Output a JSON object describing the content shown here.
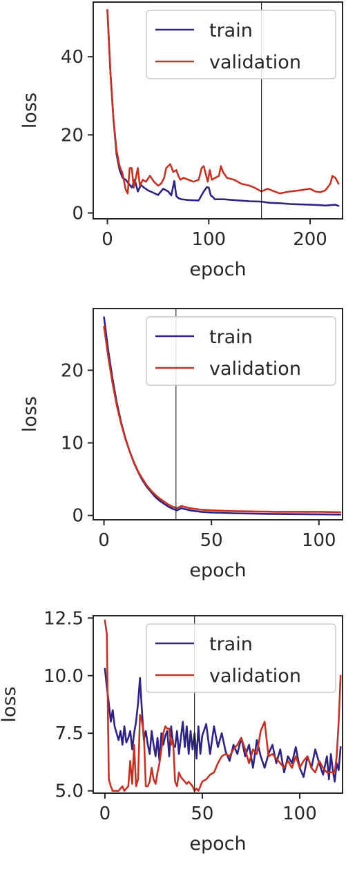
{
  "colors": {
    "train": "#2e2382",
    "validation": "#c53224",
    "axis": "#262626",
    "vline": "#1a1a1a"
  },
  "chart_data": [
    {
      "type": "line",
      "xlabel": "epoch",
      "ylabel": "loss",
      "xlim": [
        -14,
        232
      ],
      "ylim": [
        -1.5,
        54
      ],
      "xticks": [
        0,
        100,
        200
      ],
      "yticks": [
        0,
        20,
        40
      ],
      "vline": 152,
      "legend_position": "upper-right",
      "series": [
        {
          "name": "train",
          "x": [
            0,
            3,
            6,
            9,
            12,
            15,
            18,
            21,
            24,
            27,
            30,
            33,
            36,
            40,
            45,
            50,
            55,
            60,
            63,
            66,
            68,
            70,
            73,
            80,
            90,
            95,
            98,
            100,
            102,
            104,
            106,
            110,
            115,
            120,
            130,
            140,
            152,
            160,
            170,
            180,
            190,
            200,
            210,
            215,
            220,
            225,
            228
          ],
          "y": [
            52,
            36,
            24,
            15,
            11,
            9,
            8.5,
            7.5,
            6.5,
            8.5,
            5.5,
            7.2,
            6.5,
            5.8,
            5.2,
            4.6,
            6.2,
            5.5,
            4.5,
            8.2,
            4.3,
            3.8,
            3.5,
            3.3,
            3.2,
            5.5,
            6.6,
            6.5,
            4.5,
            4.1,
            3.5,
            3.5,
            3.5,
            3.4,
            3.2,
            3.0,
            2.9,
            2.6,
            2.5,
            2.3,
            2.2,
            2.1,
            2.0,
            1.9,
            2.0,
            2.1,
            1.8
          ]
        },
        {
          "name": "validation",
          "x": [
            0,
            3,
            6,
            9,
            12,
            15,
            18,
            20,
            22,
            24,
            26,
            30,
            32,
            35,
            38,
            42,
            46,
            50,
            53,
            56,
            58,
            62,
            65,
            68,
            70,
            72,
            75,
            80,
            85,
            90,
            93,
            95,
            97,
            99,
            101,
            103,
            105,
            110,
            112,
            114,
            118,
            125,
            132,
            140,
            145,
            152,
            158,
            165,
            170,
            180,
            190,
            200,
            205,
            210,
            215,
            220,
            222,
            225,
            228
          ],
          "y": [
            52,
            36,
            24,
            16,
            12,
            10,
            6,
            5,
            11.5,
            11.5,
            6.5,
            11.5,
            7,
            8.5,
            8,
            9.5,
            8,
            7,
            7.5,
            9,
            11.5,
            12.5,
            10.5,
            11,
            9.5,
            8.5,
            9,
            8.5,
            8,
            8.5,
            11.5,
            12,
            10,
            8,
            11,
            8.5,
            8.8,
            9.5,
            12,
            10.5,
            9,
            8.5,
            7.5,
            7,
            6.5,
            5.5,
            6.2,
            5.5,
            5.0,
            5.5,
            5.8,
            6.2,
            5.5,
            5.3,
            5.8,
            7.5,
            9.5,
            9,
            7.5
          ]
        }
      ]
    },
    {
      "type": "line",
      "xlabel": "epoch",
      "ylabel": "loss",
      "xlim": [
        -5,
        111
      ],
      "ylim": [
        -0.6,
        28.5
      ],
      "xticks": [
        0,
        50,
        100
      ],
      "yticks": [
        0,
        10,
        20
      ],
      "vline": 33.5,
      "legend_position": "upper-right",
      "series": [
        {
          "name": "train",
          "x": [
            0,
            2,
            4,
            6,
            8,
            10,
            12,
            14,
            16,
            18,
            20,
            22,
            24,
            26,
            28,
            30,
            32,
            34,
            36,
            40,
            45,
            50,
            55,
            60,
            70,
            80,
            90,
            100,
            110
          ],
          "y": [
            27.3,
            22.7,
            18.8,
            15.5,
            12.8,
            10.6,
            8.8,
            7.2,
            5.9,
            4.8,
            3.9,
            3.2,
            2.5,
            2.0,
            1.6,
            1.2,
            0.9,
            0.7,
            1.0,
            0.7,
            0.5,
            0.4,
            0.35,
            0.3,
            0.25,
            0.2,
            0.18,
            0.15,
            0.12
          ]
        },
        {
          "name": "validation",
          "x": [
            0,
            2,
            4,
            6,
            8,
            10,
            12,
            14,
            16,
            18,
            20,
            22,
            24,
            26,
            28,
            30,
            32,
            34,
            36,
            40,
            45,
            50,
            55,
            60,
            70,
            80,
            90,
            100,
            110
          ],
          "y": [
            26,
            21.8,
            18.2,
            15.1,
            12.6,
            10.5,
            8.8,
            7.3,
            6.0,
            5.0,
            4.1,
            3.4,
            2.8,
            2.3,
            1.9,
            1.5,
            1.2,
            1.0,
            1.3,
            1.0,
            0.8,
            0.7,
            0.65,
            0.6,
            0.55,
            0.5,
            0.5,
            0.5,
            0.45
          ]
        }
      ]
    },
    {
      "type": "line",
      "xlabel": "epoch",
      "ylabel": "loss",
      "xlim": [
        -6,
        122
      ],
      "ylim": [
        4.9,
        12.6
      ],
      "xticks": [
        0,
        50,
        100
      ],
      "yticks": [
        5.0,
        7.5,
        10.0,
        12.5
      ],
      "vline": 46,
      "legend_position": "upper-right",
      "series": [
        {
          "name": "train",
          "x": [
            0,
            1,
            2,
            3,
            4,
            5,
            6,
            7,
            8,
            9,
            10,
            11,
            12,
            13,
            14,
            15,
            16,
            17,
            18,
            19,
            20,
            21,
            22,
            23,
            24,
            25,
            26,
            27,
            28,
            29,
            30,
            31,
            32,
            33,
            34,
            35,
            36,
            37,
            38,
            39,
            40,
            41,
            42,
            43,
            44,
            45,
            46,
            47,
            48,
            49,
            50,
            52,
            54,
            56,
            58,
            60,
            62,
            64,
            66,
            68,
            70,
            72,
            74,
            76,
            78,
            80,
            82,
            84,
            86,
            88,
            90,
            92,
            94,
            96,
            98,
            100,
            102,
            104,
            106,
            108,
            110,
            112,
            114,
            115,
            116,
            117,
            118,
            119,
            120,
            121
          ],
          "y": [
            10.3,
            9.5,
            8.8,
            8.0,
            8.5,
            7.8,
            7.5,
            7.2,
            7.6,
            7.0,
            7.8,
            7.1,
            7.3,
            7.6,
            6.8,
            7.5,
            8.0,
            8.8,
            9.9,
            8.5,
            7.2,
            7.6,
            7.0,
            6.6,
            7.6,
            7.0,
            6.5,
            7.3,
            6.3,
            7.5,
            7.0,
            7.4,
            7.6,
            6.5,
            7.8,
            7.0,
            6.9,
            7.6,
            6.6,
            7.3,
            8.0,
            6.9,
            7.8,
            6.6,
            7.6,
            6.8,
            7.5,
            6.4,
            7.8,
            6.6,
            7.4,
            7.9,
            6.6,
            7.8,
            6.9,
            7.5,
            6.7,
            6.3,
            7.0,
            6.6,
            7.3,
            6.5,
            7.0,
            6.0,
            7.2,
            6.5,
            6.0,
            6.6,
            7.0,
            6.2,
            6.8,
            5.8,
            6.5,
            6.2,
            6.9,
            6.0,
            5.6,
            6.5,
            6.0,
            6.8,
            6.2,
            5.7,
            6.5,
            5.5,
            6.6,
            5.9,
            5.4,
            6.2,
            5.9,
            6.9
          ]
        },
        {
          "name": "validation",
          "x": [
            0,
            1,
            2,
            3,
            4,
            5,
            6,
            7,
            8,
            9,
            10,
            11,
            12,
            13,
            14,
            15,
            16,
            17,
            18,
            19,
            20,
            21,
            22,
            23,
            24,
            25,
            26,
            27,
            28,
            29,
            30,
            31,
            32,
            33,
            34,
            35,
            36,
            37,
            38,
            39,
            40,
            41,
            42,
            43,
            44,
            45,
            46,
            47,
            48,
            49,
            50,
            52,
            54,
            56,
            58,
            60,
            62,
            64,
            66,
            68,
            70,
            72,
            74,
            76,
            78,
            80,
            82,
            84,
            86,
            88,
            90,
            92,
            94,
            96,
            98,
            100,
            102,
            104,
            106,
            108,
            110,
            112,
            114,
            116,
            118,
            119,
            120,
            121
          ],
          "y": [
            12.4,
            11.8,
            5.5,
            5.2,
            5.0,
            5.0,
            5.0,
            5.0,
            5.1,
            5.2,
            5.0,
            5.1,
            5.2,
            6.3,
            5.3,
            7.0,
            5.2,
            5.5,
            8.3,
            8.0,
            7.5,
            5.2,
            5.2,
            5.4,
            6.0,
            5.5,
            5.3,
            5.8,
            6.2,
            6.8,
            7.5,
            7.8,
            7.7,
            7.7,
            7.0,
            7.2,
            5.4,
            5.2,
            5.8,
            5.6,
            5.5,
            5.4,
            5.3,
            5.4,
            5.3,
            5.2,
            5.0,
            5.1,
            5.0,
            5.2,
            5.4,
            5.5,
            5.7,
            5.8,
            6.2,
            6.5,
            6.6,
            6.5,
            6.8,
            7.0,
            7.3,
            6.8,
            6.2,
            6.8,
            6.6,
            7.6,
            8.0,
            6.5,
            6.6,
            6.4,
            6.2,
            6.0,
            6.3,
            6.0,
            6.5,
            6.0,
            6.3,
            6.5,
            6.0,
            5.8,
            6.3,
            6.0,
            5.8,
            5.8,
            5.8,
            6.5,
            8.0,
            10.0
          ]
        }
      ]
    }
  ]
}
